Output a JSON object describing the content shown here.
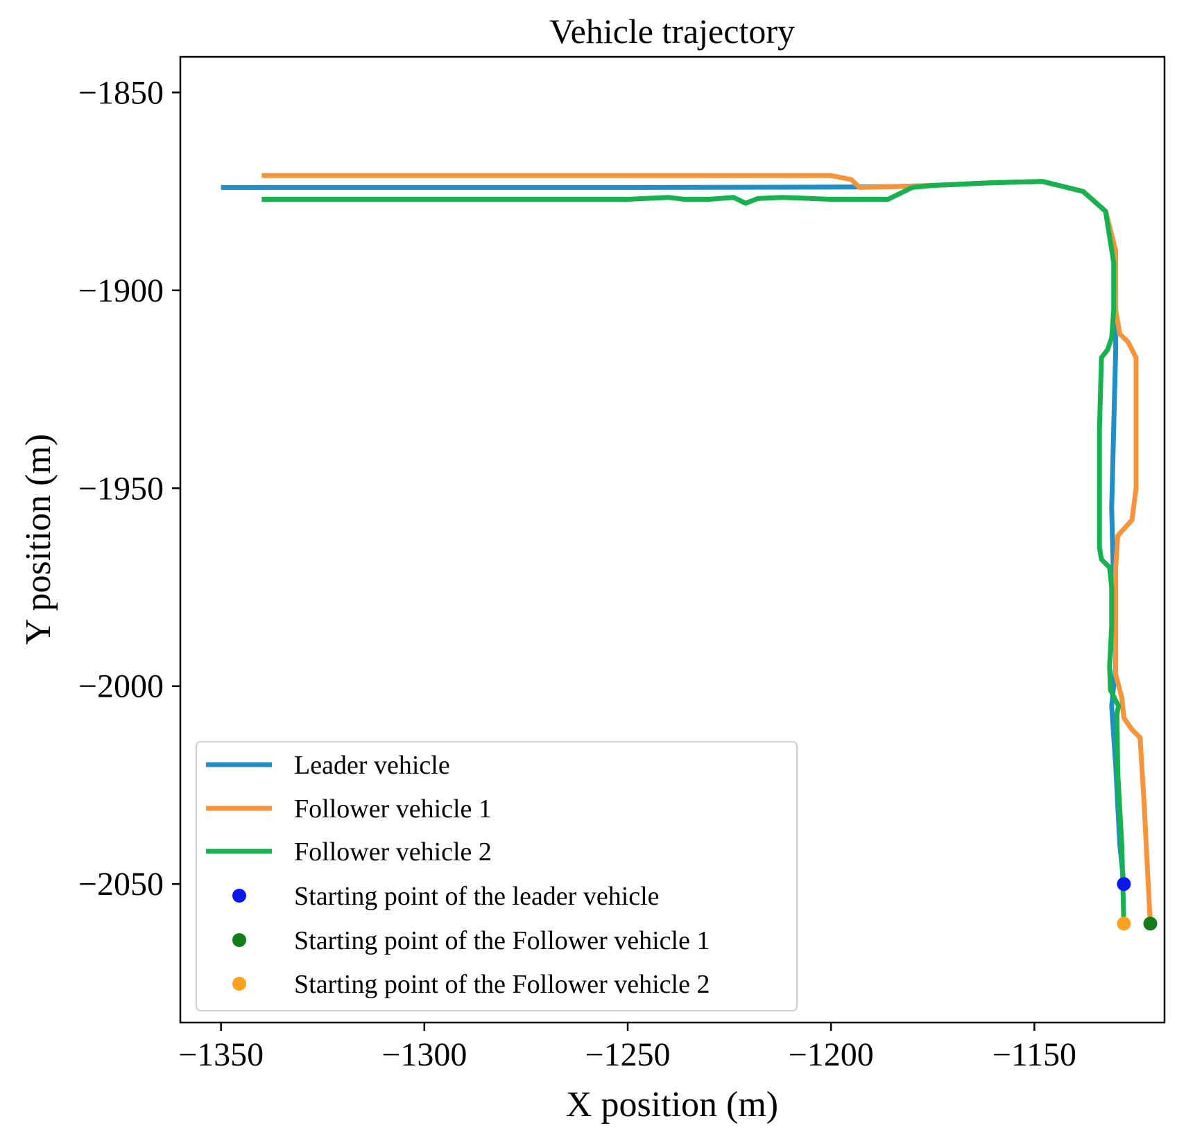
{
  "chart_data": {
    "type": "line",
    "title": "Vehicle trajectory",
    "xlabel": "X position (m)",
    "ylabel": "Y position (m)",
    "xlim": [
      -1360,
      -1118
    ],
    "ylim": [
      -2085,
      -1841
    ],
    "xticks": [
      -1350,
      -1300,
      -1250,
      -1200,
      -1150
    ],
    "yticks": [
      -1850,
      -1900,
      -1950,
      -2000,
      -2050
    ],
    "xtick_labels": [
      "−1350",
      "−1300",
      "−1250",
      "−1200",
      "−1150"
    ],
    "ytick_labels": [
      "−1850",
      "−1900",
      "−1950",
      "−2000",
      "−2050"
    ],
    "grid": false,
    "legend_position": "lower-left",
    "series": [
      {
        "name": "Leader vehicle",
        "color": "#1f8fc5",
        "points": [
          [
            -1128,
            -2050
          ],
          [
            -1129,
            -2040
          ],
          [
            -1130,
            -2020
          ],
          [
            -1131,
            -2005
          ],
          [
            -1130,
            -1995
          ],
          [
            -1130.5,
            -1975
          ],
          [
            -1131,
            -1955
          ],
          [
            -1130.5,
            -1935
          ],
          [
            -1130,
            -1915
          ],
          [
            -1130,
            -1900
          ],
          [
            -1130.5,
            -1888
          ],
          [
            -1132.5,
            -1880
          ],
          [
            -1138,
            -1875
          ],
          [
            -1148,
            -1872.5
          ],
          [
            -1160,
            -1872.8
          ],
          [
            -1175,
            -1873.5
          ],
          [
            -1185,
            -1873.8
          ],
          [
            -1195,
            -1873.9
          ],
          [
            -1250,
            -1874
          ],
          [
            -1300,
            -1874
          ],
          [
            -1350,
            -1874
          ]
        ]
      },
      {
        "name": "Follower vehicle 1",
        "color": "#f7943a",
        "points": [
          [
            -1121.5,
            -2060
          ],
          [
            -1122,
            -2050
          ],
          [
            -1123,
            -2030
          ],
          [
            -1124,
            -2013
          ],
          [
            -1126,
            -2011
          ],
          [
            -1128,
            -2008
          ],
          [
            -1128.5,
            -2003
          ],
          [
            -1130,
            -1997
          ],
          [
            -1130,
            -1985
          ],
          [
            -1130,
            -1970
          ],
          [
            -1129.5,
            -1962
          ],
          [
            -1126,
            -1958
          ],
          [
            -1125,
            -1950
          ],
          [
            -1125,
            -1935
          ],
          [
            -1125,
            -1917
          ],
          [
            -1127,
            -1913
          ],
          [
            -1129,
            -1911
          ],
          [
            -1130,
            -1905
          ],
          [
            -1130,
            -1890
          ],
          [
            -1132.5,
            -1880
          ],
          [
            -1138,
            -1875
          ],
          [
            -1148,
            -1872.5
          ],
          [
            -1160,
            -1872.8
          ],
          [
            -1175,
            -1873.5
          ],
          [
            -1185,
            -1873.8
          ],
          [
            -1193,
            -1874
          ],
          [
            -1195,
            -1872
          ],
          [
            -1200,
            -1871
          ],
          [
            -1250,
            -1871
          ],
          [
            -1300,
            -1871
          ],
          [
            -1340,
            -1871
          ]
        ]
      },
      {
        "name": "Follower vehicle 2",
        "color": "#15b34f",
        "points": [
          [
            -1128,
            -2060
          ],
          [
            -1128.5,
            -2040
          ],
          [
            -1129.5,
            -2022
          ],
          [
            -1129.7,
            -2007
          ],
          [
            -1129.3,
            -2005
          ],
          [
            -1131.3,
            -2001
          ],
          [
            -1131.5,
            -1995
          ],
          [
            -1131,
            -1985
          ],
          [
            -1131,
            -1975
          ],
          [
            -1131.5,
            -1970
          ],
          [
            -1133.5,
            -1968
          ],
          [
            -1134,
            -1965
          ],
          [
            -1134,
            -1950
          ],
          [
            -1134,
            -1935
          ],
          [
            -1133.5,
            -1917
          ],
          [
            -1132,
            -1915
          ],
          [
            -1131,
            -1912
          ],
          [
            -1130.5,
            -1905
          ],
          [
            -1130.5,
            -1893
          ],
          [
            -1132.5,
            -1880
          ],
          [
            -1138,
            -1875
          ],
          [
            -1148,
            -1872.5
          ],
          [
            -1160,
            -1872.8
          ],
          [
            -1175,
            -1873.5
          ],
          [
            -1180,
            -1874
          ],
          [
            -1182,
            -1875
          ],
          [
            -1184,
            -1876
          ],
          [
            -1186,
            -1877
          ],
          [
            -1200,
            -1877
          ],
          [
            -1212,
            -1876.5
          ],
          [
            -1218,
            -1876.8
          ],
          [
            -1221,
            -1878
          ],
          [
            -1224,
            -1876.5
          ],
          [
            -1230,
            -1877
          ],
          [
            -1236,
            -1877
          ],
          [
            -1240,
            -1876.5
          ],
          [
            -1250,
            -1877
          ],
          [
            -1300,
            -1877
          ],
          [
            -1340,
            -1877
          ]
        ]
      }
    ],
    "markers": [
      {
        "name": "Starting point of the leader vehicle",
        "color": "#0a17ee",
        "point": [
          -1128,
          -2050
        ]
      },
      {
        "name": "Starting point of the Follower vehicle 1",
        "color": "#137d17",
        "point": [
          -1121.5,
          -2060
        ]
      },
      {
        "name": "Starting point of the Follower vehicle 2",
        "color": "#fca21c",
        "point": [
          -1128,
          -2060
        ]
      }
    ]
  }
}
